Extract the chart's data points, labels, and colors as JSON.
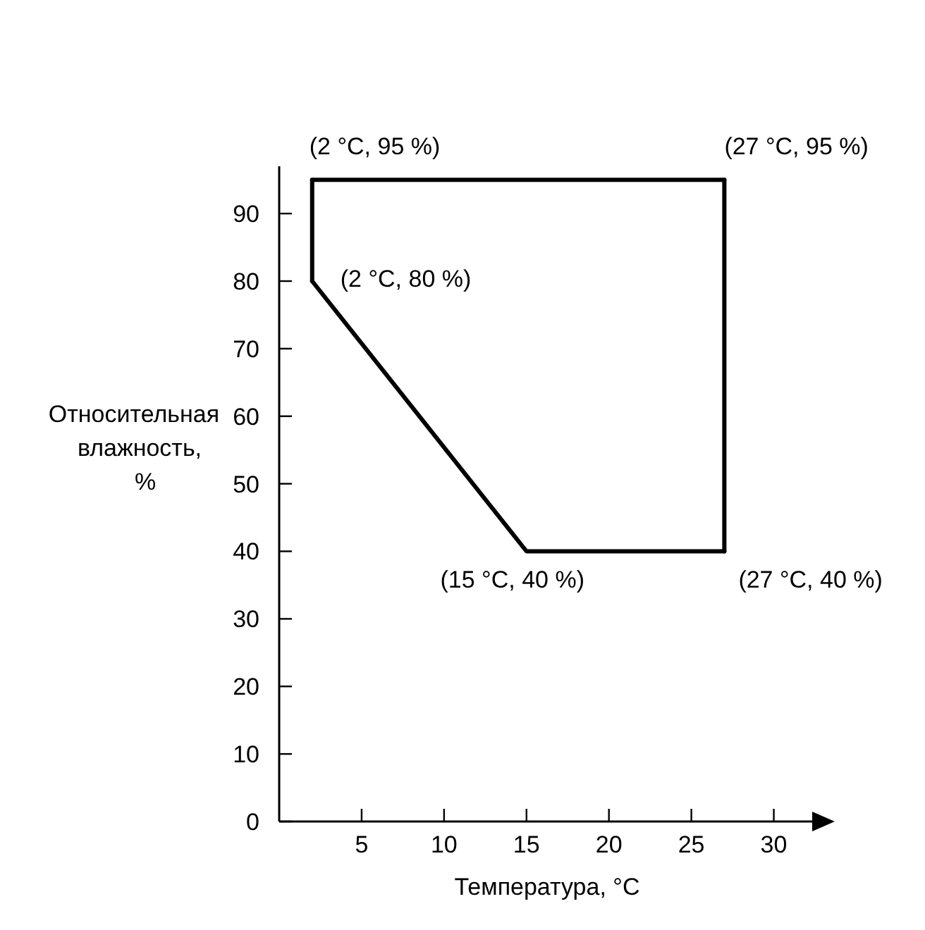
{
  "chart_data": {
    "type": "line",
    "xlabel": "Температура, °C",
    "ylabel": "Относительная влажность, %",
    "xlim": [
      0,
      32.5
    ],
    "ylim": [
      0,
      97
    ],
    "xticks": [
      5,
      10,
      15,
      20,
      25,
      30
    ],
    "yticks": [
      0,
      10,
      20,
      30,
      40,
      50,
      60,
      70,
      80,
      90
    ],
    "grid": false,
    "line_style": "solid",
    "series": [
      {
        "color": "#000000",
        "x": [
          2,
          27
        ],
        "values": [
          95,
          95
        ]
      },
      {
        "color": "#000000",
        "x": [
          2,
          15,
          27
        ],
        "values": [
          80,
          40,
          40
        ]
      },
      {
        "color": "#000000",
        "x": [
          2,
          2
        ],
        "values": [
          80,
          95
        ]
      },
      {
        "color": "#000000",
        "x": [
          27,
          27
        ],
        "values": [
          95,
          40
        ]
      }
    ],
    "annotations": [
      {
        "text": "(2 °C, 95 %)",
        "x": 2,
        "y": 95
      },
      {
        "text": "(27 °C, 95 %)",
        "x": 27,
        "y": 95
      },
      {
        "text": "(2 °C, 80 %)",
        "x": 2,
        "y": 80
      },
      {
        "text": "(15 °C, 40 %)",
        "x": 15,
        "y": 40
      },
      {
        "text": "(27 °C, 40 %)",
        "x": 27,
        "y": 40
      }
    ]
  }
}
